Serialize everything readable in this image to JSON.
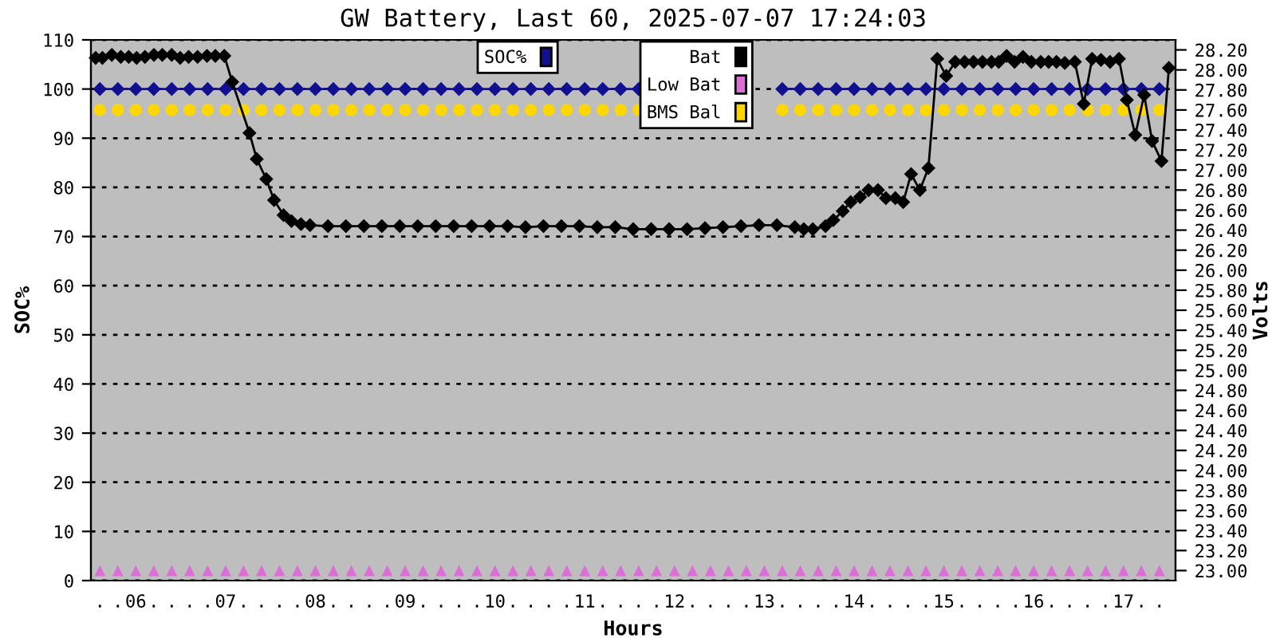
{
  "chart_data": {
    "type": "line",
    "title": "GW Battery, Last 60, 2025-07-07 17:24:03",
    "xlabel": "Hours",
    "ylabel": "SOC%",
    "y2label": "Volts",
    "x": [
      5.6,
      5.8,
      6.0,
      6.2,
      6.4,
      6.6,
      6.8,
      7.0,
      7.2,
      7.4,
      7.6,
      7.8,
      8.0,
      8.2,
      8.4,
      8.6,
      8.8,
      9.0,
      9.2,
      9.4,
      9.6,
      9.8,
      10.0,
      10.2,
      10.4,
      10.6,
      10.8,
      11.0,
      11.2,
      11.4,
      11.6,
      11.8,
      12.0,
      12.2,
      12.4,
      12.6,
      12.8,
      13.0,
      13.2,
      13.4,
      13.6,
      13.8,
      14.0,
      14.2,
      14.4,
      14.6,
      14.8,
      15.0,
      15.2,
      15.4,
      15.6,
      15.8,
      16.0,
      16.2,
      16.4,
      16.6,
      16.8,
      17.0,
      17.2,
      17.4
    ],
    "series": [
      {
        "name": "SOC%",
        "color": "#101090",
        "marker": "diamond",
        "axis": "y",
        "values": [
          100,
          100,
          100,
          100,
          100,
          100,
          100,
          100,
          100,
          100,
          100,
          100,
          100,
          100,
          100,
          100,
          100,
          100,
          100,
          100,
          100,
          100,
          100,
          100,
          100,
          100,
          100,
          100,
          100,
          100,
          100,
          null,
          null,
          null,
          null,
          null,
          null,
          null,
          100,
          100,
          100,
          100,
          100,
          100,
          100,
          100,
          100,
          100,
          100,
          100,
          100,
          100,
          100,
          100,
          100,
          100,
          100,
          100,
          100,
          100
        ]
      },
      {
        "name": "BMS Bal",
        "type": "scatter",
        "color": "#ffd700",
        "marker": "circle",
        "axis": "y2",
        "values": [
          27.6,
          27.6,
          27.6,
          27.6,
          27.6,
          27.6,
          27.6,
          27.6,
          27.6,
          27.6,
          27.6,
          27.6,
          27.6,
          27.6,
          27.6,
          27.6,
          27.6,
          27.6,
          27.6,
          27.6,
          27.6,
          27.6,
          27.6,
          27.6,
          27.6,
          27.6,
          27.6,
          27.6,
          27.6,
          27.6,
          27.6,
          null,
          null,
          null,
          null,
          null,
          null,
          null,
          27.6,
          27.6,
          27.6,
          27.6,
          27.6,
          27.6,
          27.6,
          27.6,
          27.6,
          27.6,
          27.6,
          27.6,
          27.6,
          27.6,
          27.6,
          27.6,
          27.6,
          27.6,
          27.6,
          27.6,
          27.6,
          27.6
        ]
      },
      {
        "name": "Low Bat",
        "type": "scatter",
        "color": "#da70d6",
        "marker": "triangle",
        "axis": "y2",
        "values": [
          23.0,
          23.0,
          23.0,
          23.0,
          23.0,
          23.0,
          23.0,
          23.0,
          23.0,
          23.0,
          23.0,
          23.0,
          23.0,
          23.0,
          23.0,
          23.0,
          23.0,
          23.0,
          23.0,
          23.0,
          23.0,
          23.0,
          23.0,
          23.0,
          23.0,
          23.0,
          23.0,
          23.0,
          23.0,
          23.0,
          23.0,
          23.0,
          23.0,
          23.0,
          23.0,
          23.0,
          23.0,
          23.0,
          23.0,
          23.0,
          23.0,
          23.0,
          23.0,
          23.0,
          23.0,
          23.0,
          23.0,
          23.0,
          23.0,
          23.0,
          23.0,
          23.0,
          23.0,
          23.0,
          23.0,
          23.0,
          23.0,
          23.0,
          23.0,
          23.0
        ]
      },
      {
        "name": "Bat",
        "color": "#000000",
        "marker": "diamond",
        "axis": "y2",
        "x": [
          5.553,
          5.628,
          5.733,
          5.833,
          5.921,
          6.009,
          6.102,
          6.202,
          6.295,
          6.4,
          6.494,
          6.588,
          6.688,
          6.793,
          6.886,
          6.986,
          7.074,
          7.266,
          7.347,
          7.453,
          7.54,
          7.646,
          7.734,
          7.839,
          7.94,
          8.14,
          8.34,
          8.54,
          8.74,
          8.94,
          9.14,
          9.34,
          9.54,
          9.74,
          9.94,
          10.14,
          10.34,
          10.54,
          10.74,
          10.94,
          11.14,
          11.34,
          11.54,
          11.74,
          11.94,
          12.14,
          12.34,
          12.54,
          12.74,
          12.94,
          13.14,
          13.34,
          13.44,
          13.54,
          13.681,
          13.769,
          13.874,
          13.962,
          14.067,
          14.161,
          14.266,
          14.354,
          14.459,
          14.547,
          14.635,
          14.733,
          14.828,
          14.926,
          15.026,
          15.126,
          15.231,
          15.33,
          15.43,
          15.53,
          15.611,
          15.699,
          15.787,
          15.881,
          15.974,
          16.079,
          16.167,
          16.254,
          16.347,
          16.459,
          16.558,
          16.651,
          16.75,
          16.851,
          16.95,
          17.038,
          17.132,
          17.231,
          17.319,
          17.424,
          17.506
        ],
        "values": [
          28.12,
          28.12,
          28.15,
          28.13,
          28.13,
          28.12,
          28.13,
          28.15,
          28.15,
          28.15,
          28.12,
          28.13,
          28.13,
          28.14,
          28.14,
          28.14,
          27.88,
          27.37,
          27.11,
          26.91,
          26.7,
          26.55,
          26.49,
          26.46,
          26.45,
          26.44,
          26.44,
          26.44,
          26.44,
          26.44,
          26.44,
          26.44,
          26.44,
          26.44,
          26.44,
          26.44,
          26.43,
          26.44,
          26.44,
          26.44,
          26.43,
          26.43,
          26.41,
          26.41,
          26.41,
          26.41,
          26.42,
          26.43,
          26.44,
          26.45,
          26.45,
          26.43,
          26.41,
          26.41,
          26.44,
          26.5,
          26.59,
          26.68,
          26.73,
          26.8,
          26.8,
          26.72,
          26.72,
          26.68,
          26.96,
          26.8,
          27.02,
          28.11,
          27.94,
          28.08,
          28.08,
          28.08,
          28.08,
          28.08,
          28.08,
          28.14,
          28.08,
          28.13,
          28.08,
          28.08,
          28.08,
          28.08,
          28.07,
          28.08,
          27.66,
          28.11,
          28.1,
          28.08,
          28.11,
          27.7,
          27.35,
          27.75,
          27.29,
          27.09,
          28.02
        ]
      }
    ],
    "xlim": [
      5.5,
      17.58
    ],
    "xticks": [
      {
        "value": 5.6,
        "label": "."
      },
      {
        "value": 5.8,
        "label": "."
      },
      {
        "value": 6.0,
        "label": "06"
      },
      {
        "value": 6.2,
        "label": "."
      },
      {
        "value": 6.4,
        "label": "."
      },
      {
        "value": 6.6,
        "label": "."
      },
      {
        "value": 6.8,
        "label": "."
      },
      {
        "value": 7.0,
        "label": "07"
      },
      {
        "value": 7.2,
        "label": "."
      },
      {
        "value": 7.4,
        "label": "."
      },
      {
        "value": 7.6,
        "label": "."
      },
      {
        "value": 7.8,
        "label": "."
      },
      {
        "value": 8.0,
        "label": "08"
      },
      {
        "value": 8.2,
        "label": "."
      },
      {
        "value": 8.4,
        "label": "."
      },
      {
        "value": 8.6,
        "label": "."
      },
      {
        "value": 8.8,
        "label": "."
      },
      {
        "value": 9.0,
        "label": "09"
      },
      {
        "value": 9.2,
        "label": "."
      },
      {
        "value": 9.4,
        "label": "."
      },
      {
        "value": 9.6,
        "label": "."
      },
      {
        "value": 9.8,
        "label": "."
      },
      {
        "value": 10.0,
        "label": "10"
      },
      {
        "value": 10.2,
        "label": "."
      },
      {
        "value": 10.4,
        "label": "."
      },
      {
        "value": 10.6,
        "label": "."
      },
      {
        "value": 10.8,
        "label": "."
      },
      {
        "value": 11.0,
        "label": "11"
      },
      {
        "value": 11.2,
        "label": "."
      },
      {
        "value": 11.4,
        "label": "."
      },
      {
        "value": 11.6,
        "label": "."
      },
      {
        "value": 11.8,
        "label": "."
      },
      {
        "value": 12.0,
        "label": "12"
      },
      {
        "value": 12.2,
        "label": "."
      },
      {
        "value": 12.4,
        "label": "."
      },
      {
        "value": 12.6,
        "label": "."
      },
      {
        "value": 12.8,
        "label": "."
      },
      {
        "value": 13.0,
        "label": "13"
      },
      {
        "value": 13.2,
        "label": "."
      },
      {
        "value": 13.4,
        "label": "."
      },
      {
        "value": 13.6,
        "label": "."
      },
      {
        "value": 13.8,
        "label": "."
      },
      {
        "value": 14.0,
        "label": "14"
      },
      {
        "value": 14.2,
        "label": "."
      },
      {
        "value": 14.4,
        "label": "."
      },
      {
        "value": 14.6,
        "label": "."
      },
      {
        "value": 14.8,
        "label": "."
      },
      {
        "value": 15.0,
        "label": "15"
      },
      {
        "value": 15.2,
        "label": "."
      },
      {
        "value": 15.4,
        "label": "."
      },
      {
        "value": 15.6,
        "label": "."
      },
      {
        "value": 15.8,
        "label": "."
      },
      {
        "value": 16.0,
        "label": "16"
      },
      {
        "value": 16.2,
        "label": "."
      },
      {
        "value": 16.4,
        "label": "."
      },
      {
        "value": 16.6,
        "label": "."
      },
      {
        "value": 16.8,
        "label": "."
      },
      {
        "value": 17.0,
        "label": "17"
      },
      {
        "value": 17.2,
        "label": "."
      },
      {
        "value": 17.4,
        "label": "."
      }
    ],
    "ylim": [
      0,
      110
    ],
    "yticks": [
      0,
      10,
      20,
      30,
      40,
      50,
      60,
      70,
      80,
      90,
      100,
      110
    ],
    "y2lim": [
      22.9,
      28.3
    ],
    "y2ticks": [
      {
        "value": 23.0,
        "label": "23.00"
      },
      {
        "value": 23.2,
        "label": "23.20"
      },
      {
        "value": 23.4,
        "label": "23.40"
      },
      {
        "value": 23.6,
        "label": "23.60"
      },
      {
        "value": 23.8,
        "label": "23.80"
      },
      {
        "value": 24.0,
        "label": "24.00"
      },
      {
        "value": 24.2,
        "label": "24.20"
      },
      {
        "value": 24.4,
        "label": "24.40"
      },
      {
        "value": 24.6,
        "label": "24.60"
      },
      {
        "value": 24.8,
        "label": "24.80"
      },
      {
        "value": 25.0,
        "label": "25.00"
      },
      {
        "value": 25.2,
        "label": "25.20"
      },
      {
        "value": 25.4,
        "label": "25.40"
      },
      {
        "value": 25.6,
        "label": "25.60"
      },
      {
        "value": 25.8,
        "label": "25.80"
      },
      {
        "value": 26.0,
        "label": "26.00"
      },
      {
        "value": 26.2,
        "label": "26.20"
      },
      {
        "value": 26.4,
        "label": "26.40"
      },
      {
        "value": 26.6,
        "label": "26.60"
      },
      {
        "value": 26.8,
        "label": "26.80"
      },
      {
        "value": 27.0,
        "label": "27.00"
      },
      {
        "value": 27.2,
        "label": "27.20"
      },
      {
        "value": 27.4,
        "label": "27.40"
      },
      {
        "value": 27.6,
        "label": "27.60"
      },
      {
        "value": 27.8,
        "label": "27.80"
      },
      {
        "value": 28.0,
        "label": "28.00"
      },
      {
        "value": 28.2,
        "label": "28.20"
      }
    ],
    "grid": "y",
    "legend": "top"
  }
}
